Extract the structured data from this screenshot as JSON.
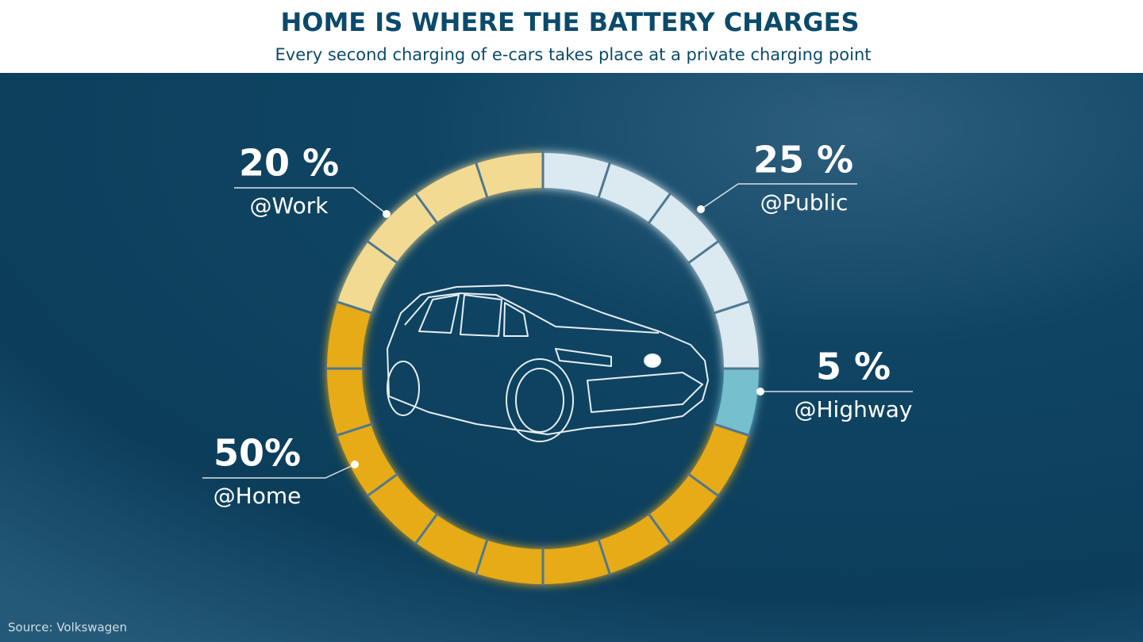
{
  "chart_data": {
    "type": "donut",
    "title": "HOME IS WHERE THE BATTERY CHARGES",
    "subtitle": "Every second charging of e-cars takes place at a private charging point",
    "source": "Source: Volkswagen",
    "categories": [
      "@Public",
      "@Highway",
      "@Home",
      "@Work"
    ],
    "values": [
      25,
      5,
      50,
      20
    ],
    "value_labels": [
      "25 %",
      "5 %",
      "50%",
      "20 %"
    ],
    "colors": [
      "#dbe9f0",
      "#74bfcf",
      "#e6ab14",
      "#f3da92"
    ]
  }
}
